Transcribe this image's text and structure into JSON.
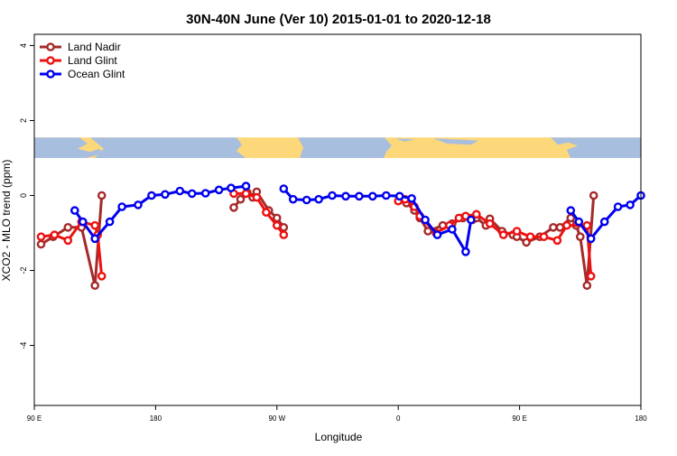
{
  "chart_data": {
    "type": "line",
    "title": "30N-40N June (Ver 10)   2015-01-01 to 2020-12-18",
    "xlabel": "Longitude",
    "ylabel": "XCO2 - MLO trend (ppm)",
    "xlim": [
      90,
      540
    ],
    "ylim": [
      -5.6,
      4.3
    ],
    "x_ticks": [
      {
        "value": 90,
        "label": "90 E"
      },
      {
        "value": 180,
        "label": "180"
      },
      {
        "value": 270,
        "label": "90 W"
      },
      {
        "value": 360,
        "label": "0"
      },
      {
        "value": 450,
        "label": "90 E"
      },
      {
        "value": 540,
        "label": "180"
      }
    ],
    "y_ticks": [
      {
        "value": 4,
        "label": "4"
      },
      {
        "value": 2,
        "label": "2"
      },
      {
        "value": 0,
        "label": "0"
      },
      {
        "value": -2,
        "label": "-2"
      },
      {
        "value": -4,
        "label": "-4"
      }
    ],
    "legend_position": "top-left",
    "map_band": {
      "y_range": [
        1.0,
        1.55
      ],
      "ocean_color": "#a8bedf",
      "land_color": "#fcd87a"
    },
    "series": [
      {
        "name": "Land Nadir",
        "color": "#a52a2a",
        "points": [
          [
            95,
            -1.3
          ],
          [
            104,
            -1.1
          ],
          [
            115,
            -0.85
          ],
          [
            125,
            -0.85
          ],
          [
            135,
            -2.4
          ],
          [
            140,
            0.0
          ],
          null,
          [
            238,
            -0.32
          ],
          [
            243,
            -0.1
          ],
          [
            248,
            0.08
          ],
          [
            252,
            -0.05
          ],
          [
            255,
            0.1
          ],
          [
            264,
            -0.4
          ],
          [
            270,
            -0.6
          ],
          [
            275,
            -0.85
          ],
          null,
          [
            366,
            -0.2
          ],
          [
            372,
            -0.4
          ],
          [
            376,
            -0.6
          ],
          [
            382,
            -0.95
          ],
          [
            393,
            -0.8
          ],
          [
            400,
            -0.75
          ],
          [
            408,
            -0.6
          ],
          [
            415,
            -0.65
          ],
          [
            418,
            -0.6
          ],
          [
            425,
            -0.8
          ],
          [
            428,
            -0.62
          ],
          [
            437,
            -0.95
          ],
          [
            445,
            -1.05
          ],
          [
            448,
            -1.1
          ],
          [
            455,
            -1.25
          ],
          [
            465,
            -1.1
          ],
          [
            475,
            -0.85
          ],
          [
            480,
            -0.85
          ],
          [
            488,
            -0.6
          ],
          [
            492,
            -0.8
          ],
          [
            495,
            -1.1
          ],
          [
            500,
            -2.4
          ],
          [
            505,
            0.0
          ]
        ]
      },
      {
        "name": "Land Glint",
        "color": "#ee1111",
        "points": [
          [
            95,
            -1.1
          ],
          [
            105,
            -1.05
          ],
          [
            115,
            -1.2
          ],
          [
            125,
            -0.7
          ],
          [
            135,
            -0.8
          ],
          [
            137,
            -1.05
          ],
          [
            140,
            -2.15
          ],
          null,
          [
            238,
            0.05
          ],
          [
            247,
            0.05
          ],
          [
            255,
            -0.05
          ],
          [
            262,
            -0.45
          ],
          [
            270,
            -0.8
          ],
          [
            275,
            -1.05
          ],
          null,
          [
            360,
            -0.15
          ],
          [
            365,
            -0.1
          ],
          [
            372,
            -0.3
          ],
          [
            376,
            -0.55
          ],
          [
            388,
            -1.0
          ],
          [
            398,
            -0.8
          ],
          [
            405,
            -0.6
          ],
          [
            410,
            -0.55
          ],
          [
            418,
            -0.5
          ],
          [
            428,
            -0.75
          ],
          [
            438,
            -1.05
          ],
          [
            448,
            -0.95
          ],
          [
            458,
            -1.1
          ],
          [
            468,
            -1.1
          ],
          [
            478,
            -1.2
          ],
          [
            485,
            -0.8
          ],
          [
            500,
            -0.8
          ],
          [
            503,
            -2.15
          ]
        ]
      },
      {
        "name": "Ocean Glint",
        "color": "#0000ee",
        "points": [
          [
            120,
            -0.4
          ],
          [
            126,
            -0.7
          ],
          [
            135,
            -1.15
          ],
          [
            146,
            -0.7
          ],
          [
            155,
            -0.3
          ],
          [
            167,
            -0.25
          ],
          [
            177,
            0.0
          ],
          [
            187,
            0.03
          ],
          [
            198,
            0.12
          ],
          [
            207,
            0.05
          ],
          [
            217,
            0.06
          ],
          [
            227,
            0.15
          ],
          [
            236,
            0.2
          ],
          [
            247,
            0.25
          ],
          null,
          [
            275,
            0.18
          ],
          [
            282,
            -0.1
          ],
          [
            292,
            -0.12
          ],
          [
            301,
            -0.1
          ],
          [
            311,
            0.0
          ],
          [
            321,
            -0.02
          ],
          [
            331,
            -0.02
          ],
          [
            341,
            -0.02
          ],
          [
            351,
            0.0
          ],
          [
            361,
            -0.02
          ],
          [
            370,
            -0.08
          ],
          [
            380,
            -0.65
          ],
          [
            389,
            -1.05
          ],
          [
            400,
            -0.9
          ],
          [
            410,
            -1.5
          ],
          [
            414,
            -0.65
          ],
          null,
          [
            488,
            -0.4
          ],
          [
            494,
            -0.7
          ],
          [
            503,
            -1.15
          ],
          [
            513,
            -0.7
          ],
          [
            523,
            -0.3
          ],
          [
            532,
            -0.25
          ],
          [
            540,
            0.0
          ]
        ]
      }
    ]
  }
}
